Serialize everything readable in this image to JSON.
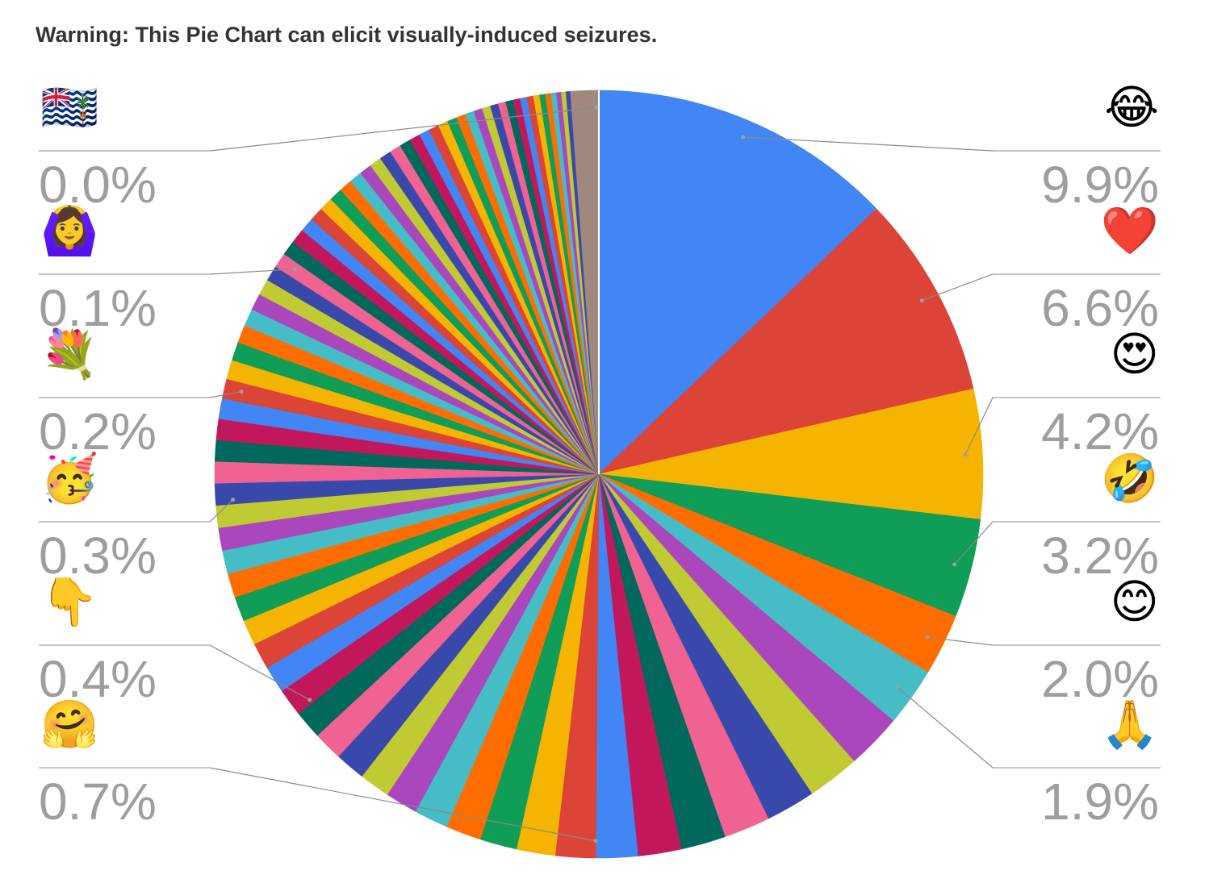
{
  "title": "Warning: This Pie Chart can elicit visually-induced seizures.",
  "chart_data": {
    "type": "pie",
    "title": "Warning: This Pie Chart can elicit visually-induced seizures.",
    "start_angle_deg": 0,
    "direction": "clockwise",
    "palette": [
      "#4285f4",
      "#db4437",
      "#f4b400",
      "#0f9d58",
      "#ff6d00",
      "#46bdc6",
      "#ab47bc",
      "#c0ca33",
      "#3949ab",
      "#f06292",
      "#00695c",
      "#c2185b"
    ],
    "tail_color": "#a1887f",
    "slices": [
      {
        "label": "😂",
        "value": 9.9
      },
      {
        "label": "❤️",
        "value": 6.6
      },
      {
        "label": "😍",
        "value": 4.2
      },
      {
        "label": "🤣",
        "value": 3.2
      },
      {
        "label": "😊",
        "value": 2.0
      },
      {
        "label": "🙏",
        "value": 1.9
      }
    ],
    "tail_values": [
      1.8,
      1.7,
      1.6,
      1.5,
      1.45,
      1.4,
      1.35,
      1.3,
      1.25,
      1.2,
      1.15,
      1.1,
      1.05,
      1.0,
      0.98,
      0.95,
      0.92,
      0.9,
      0.88,
      0.85,
      0.82,
      0.8,
      0.78,
      0.76,
      0.74,
      0.72,
      0.71,
      0.7,
      0.69,
      0.68,
      0.66,
      0.64,
      0.62,
      0.6,
      0.58,
      0.56,
      0.54,
      0.52,
      0.5,
      0.49,
      0.48,
      0.47,
      0.46,
      0.45,
      0.44,
      0.43,
      0.42,
      0.41,
      0.4,
      0.39,
      0.38,
      0.37,
      0.36,
      0.35,
      0.34,
      0.33,
      0.32,
      0.31,
      0.3,
      0.29,
      0.28,
      0.27,
      0.26,
      0.25,
      0.24,
      0.23,
      0.22,
      0.21,
      0.2,
      0.19,
      0.18,
      0.17,
      0.16,
      0.15,
      0.14,
      0.13,
      0.12,
      0.11,
      0.1,
      0.09,
      0.08,
      0.07,
      0.06,
      0.05,
      0.04,
      0.03,
      0.02,
      0.01
    ],
    "callouts": [
      {
        "side": "right",
        "label": "😂",
        "value": "9.9%"
      },
      {
        "side": "right",
        "label": "❤️",
        "value": "6.6%"
      },
      {
        "side": "right",
        "label": "😍",
        "value": "4.2%"
      },
      {
        "side": "right",
        "label": "🤣",
        "value": "3.2%"
      },
      {
        "side": "right",
        "label": "😊",
        "value": "2.0%"
      },
      {
        "side": "right",
        "label": "🙏",
        "value": "1.9%"
      },
      {
        "side": "left",
        "label": "🇮🇴",
        "value": "0.0%"
      },
      {
        "side": "left",
        "label": "🙆‍♀️",
        "value": "0.1%"
      },
      {
        "side": "left",
        "label": "💐",
        "value": "0.2%"
      },
      {
        "side": "left",
        "label": "🥳",
        "value": "0.3%"
      },
      {
        "side": "left",
        "label": "👇",
        "value": "0.4%"
      },
      {
        "side": "left",
        "label": "🤗",
        "value": "0.7%"
      }
    ]
  }
}
